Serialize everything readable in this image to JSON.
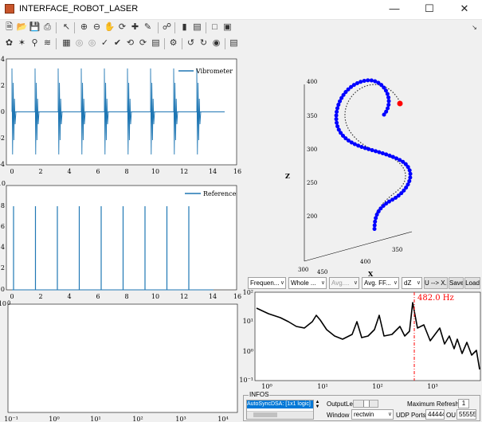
{
  "window": {
    "title": "INTERFACE_ROBOT_LASER",
    "minimize": "—",
    "maximize": "☐",
    "close": "✕"
  },
  "toolbar1": [
    "new-figure-icon",
    "open-icon",
    "save-icon",
    "print-icon",
    "pointer-icon",
    "zoom-in-icon",
    "zoom-out-icon",
    "pan-icon",
    "rotate-icon",
    "data-cursor-icon",
    "brush-icon",
    "link-icon",
    "colorbar-icon",
    "legend-icon",
    "hide-plot-tools-icon",
    "show-plot-tools-icon"
  ],
  "toolbar2": [
    "tool-a-icon",
    "tool-b-icon",
    "tool-c-icon",
    "tool-d-icon",
    "grid-icon",
    "tool-f-icon",
    "tool-g-icon",
    "tool-h-icon",
    "tool-i-icon",
    "tool-j-icon",
    "tool-k-icon",
    "tool-l-icon",
    "settings-icon",
    "tool-n-icon",
    "tool-o-icon",
    "tool-p-icon",
    "tool-q-icon"
  ],
  "colors": {
    "signal": "#1f77b4",
    "trajectory": "#0000ff",
    "marker": "#ff0000",
    "spectrum": "#000000",
    "peak": "#ff0000"
  },
  "plot1": {
    "yticks": [
      "4",
      "2",
      "0",
      "-2",
      "-4"
    ],
    "xticks": [
      "0",
      "2",
      "4",
      "6",
      "8",
      "10",
      "12",
      "14",
      "16"
    ],
    "legend": "Vibrometer"
  },
  "plot2": {
    "ymax_label": "10",
    "yticks": [
      "8",
      "6",
      "4",
      "2",
      "0"
    ],
    "xticks": [
      "0",
      "2",
      "4",
      "6",
      "8",
      "10",
      "12",
      "14",
      "16"
    ],
    "legend": "Reference"
  },
  "plot3": {
    "ymax_label": "10",
    "yticks": [
      "0"
    ],
    "xticks": [
      "10⁻¹",
      "10⁰",
      "10¹",
      "10²",
      "10³",
      "10⁴"
    ]
  },
  "plot3d": {
    "zticks": [
      "400",
      "350",
      "300",
      "250",
      "200"
    ],
    "zlabel": "Z",
    "xticks": [
      "450",
      "400"
    ],
    "xlabel": "X",
    "yticks": [
      "350",
      "300"
    ]
  },
  "spectrum": {
    "yticks": [
      "10²",
      "10¹",
      "10⁰",
      "10⁻¹"
    ],
    "xticks": [
      "10⁰",
      "10¹",
      "10²",
      "10³"
    ],
    "peak_label": "482.0 Hz"
  },
  "controls": {
    "freq_select": "Frequen...",
    "whole_select": "Whole ...",
    "avg_select": "Avg....",
    "avgff_select": "Avg. FF...",
    "dz_select": "dZ",
    "u_button": "U --> X...",
    "save_button": "Save",
    "load_button": "Load"
  },
  "infos": {
    "title": "INFOS",
    "list_item": "AutoSyncDSA: [1x1 logic]",
    "output_label": "OutputLe",
    "max_refresh_label": "Maximum Refresh",
    "max_refresh_value": "1",
    "window_label": "Window",
    "window_select": "rectwin",
    "udp_label": "UDP Ports",
    "udp_port1": "44444",
    "ou_label": "OU",
    "udp_port2": "55555"
  }
}
